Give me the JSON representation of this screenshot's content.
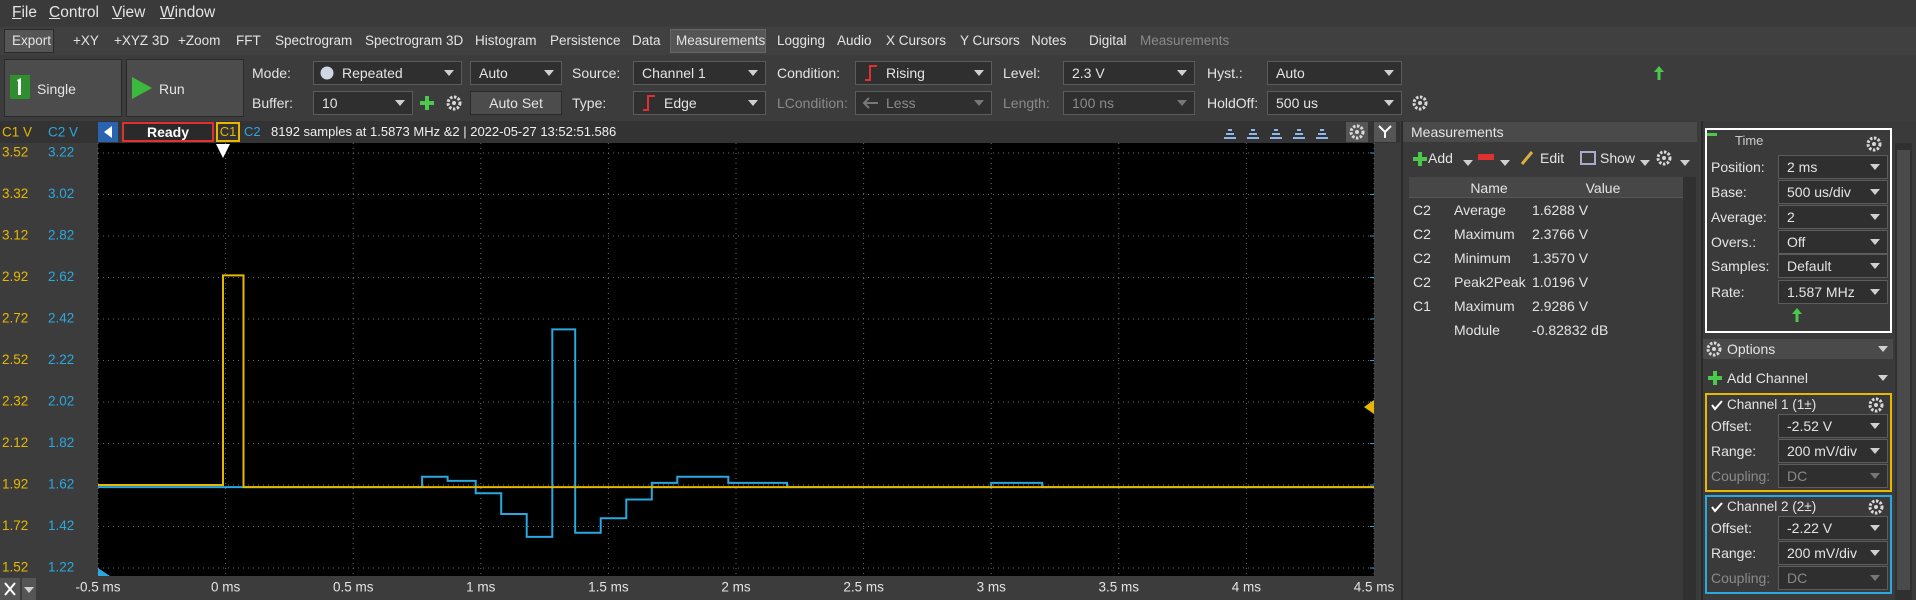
{
  "menu": [
    "File",
    "Control",
    "View",
    "Window"
  ],
  "toolbar": [
    "Export",
    "+XY",
    "+XYZ 3D",
    "+Zoom",
    "FFT",
    "Spectrogram",
    "Spectrogram 3D",
    "Histogram",
    "Persistence",
    "Data",
    "Measurements",
    "Logging",
    "Audio",
    "X Cursors",
    "Y Cursors",
    "Notes",
    "Digital",
    "Measurements"
  ],
  "buttons": {
    "single": "Single",
    "run": "Run",
    "auto_set": "Auto Set"
  },
  "trigger": {
    "mode_label": "Mode:",
    "mode": "Repeated",
    "auto": "Auto",
    "buffer_label": "Buffer:",
    "buffer": "10",
    "source_label": "Source:",
    "source": "Channel 1",
    "type_label": "Type:",
    "type": "Edge",
    "condition_label": "Condition:",
    "condition": "Rising",
    "lcondition_label": "LCondition:",
    "lcondition": "Less",
    "level_label": "Level:",
    "level": "2.3 V",
    "length_label": "Length:",
    "length": "100 ns",
    "hyst_label": "Hyst.:",
    "hyst": "Auto",
    "holdoff_label": "HoldOff:",
    "holdoff": "500 us"
  },
  "status": {
    "state": "Ready",
    "info": "8192 samples at 1.5873 MHz &2 | 2022-05-27 13:52:51.586"
  },
  "chart_data": {
    "type": "line",
    "y_label": "C1 V",
    "y2_label": "C2 V",
    "grid": true,
    "xlim": [
      -0.5,
      4.5
    ],
    "xticks": [
      {
        "value": -0.5,
        "label": "-0.5 ms"
      },
      {
        "value": 0,
        "label": "0 ms"
      },
      {
        "value": 0.5,
        "label": "0.5 ms"
      },
      {
        "value": 1,
        "label": "1 ms"
      },
      {
        "value": 1.5,
        "label": "1.5 ms"
      },
      {
        "value": 2,
        "label": "2 ms"
      },
      {
        "value": 2.5,
        "label": "2.5 ms"
      },
      {
        "value": 3,
        "label": "3 ms"
      },
      {
        "value": 3.5,
        "label": "3.5 ms"
      },
      {
        "value": 4,
        "label": "4 ms"
      },
      {
        "value": 4.5,
        "label": "4.5 ms"
      }
    ],
    "ylim": [
      1.52,
      3.52
    ],
    "yticks": [
      3.52,
      3.32,
      3.12,
      2.92,
      2.72,
      2.52,
      2.32,
      2.12,
      1.92,
      1.72,
      1.52
    ],
    "y2lim": [
      1.22,
      3.22
    ],
    "y2ticks": [
      3.22,
      3.02,
      2.82,
      2.62,
      2.42,
      2.22,
      2.02,
      1.82,
      1.62,
      1.42,
      1.22
    ],
    "series": [
      {
        "name": "C1",
        "color": "#e8b800",
        "x": [
          -0.5,
          -0.01,
          -0.01,
          0.07,
          0.07,
          4.5
        ],
        "values": [
          1.92,
          1.92,
          2.93,
          2.93,
          1.91,
          1.91
        ]
      },
      {
        "name": "C2",
        "color": "#2aa8e0",
        "axis": "y2",
        "x": [
          -0.5,
          0.77,
          0.77,
          0.87,
          0.87,
          0.98,
          0.98,
          1.08,
          1.08,
          1.18,
          1.18,
          1.28,
          1.28,
          1.37,
          1.37,
          1.47,
          1.47,
          1.57,
          1.57,
          1.67,
          1.67,
          1.77,
          1.77,
          1.97,
          1.97,
          2.2,
          2.2,
          3.0,
          3.0,
          3.2,
          3.2,
          4.5
        ],
        "values": [
          1.61,
          1.61,
          1.66,
          1.66,
          1.64,
          1.64,
          1.58,
          1.58,
          1.48,
          1.48,
          1.37,
          1.37,
          2.37,
          2.37,
          1.39,
          1.39,
          1.46,
          1.46,
          1.55,
          1.55,
          1.63,
          1.63,
          1.66,
          1.66,
          1.63,
          1.63,
          1.61,
          1.61,
          1.63,
          1.63,
          1.61,
          1.61
        ]
      }
    ]
  },
  "measurements": {
    "title": "Measurements",
    "add": "Add",
    "edit": "Edit",
    "show": "Show",
    "columns": [
      "Name",
      "Value"
    ],
    "rows": [
      {
        "channel": "C2",
        "name": "Average",
        "value": "1.6288 V"
      },
      {
        "channel": "C2",
        "name": "Maximum",
        "value": "2.3766 V"
      },
      {
        "channel": "C2",
        "name": "Minimum",
        "value": "1.3570 V"
      },
      {
        "channel": "C2",
        "name": "Peak2Peak",
        "value": "1.0196 V"
      },
      {
        "channel": "C1",
        "name": "Maximum",
        "value": "2.9286 V"
      },
      {
        "name": "Module",
        "value": "-0.82832 dB"
      }
    ]
  },
  "time": {
    "title": "Time",
    "rows": [
      [
        "Position:",
        "2 ms"
      ],
      [
        "Base:",
        "500 us/div"
      ],
      [
        "Average:",
        "2"
      ],
      [
        "Overs.:",
        "Off"
      ],
      [
        "Samples:",
        "Default"
      ],
      [
        "Rate:",
        "1.587 MHz"
      ]
    ]
  },
  "options": "Options",
  "add_channel": "Add Channel",
  "channels": [
    {
      "title": "Channel 1 (1±)",
      "rows": [
        [
          "Offset:",
          "-2.52 V"
        ],
        [
          "Range:",
          "200 mV/div"
        ],
        [
          "Coupling:",
          "DC"
        ]
      ]
    },
    {
      "title": "Channel 2 (2±)",
      "rows": [
        [
          "Offset:",
          "-2.22 V"
        ],
        [
          "Range:",
          "200 mV/div"
        ],
        [
          "Coupling:",
          "DC"
        ]
      ]
    }
  ]
}
